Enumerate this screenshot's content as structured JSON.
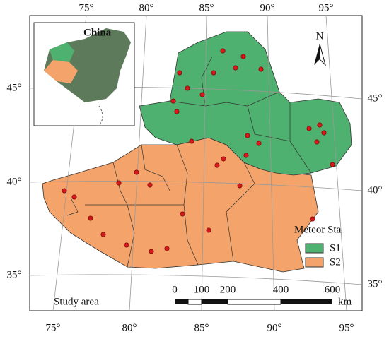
{
  "graticule": {
    "top": [
      "75°",
      "80°",
      "85°",
      "90°",
      "95°"
    ],
    "bottom": [
      "75°",
      "80°",
      "85°",
      "90°",
      "95°"
    ],
    "left": [
      "45°",
      "40°",
      "35°"
    ],
    "right": [
      "45°",
      "40°",
      "35°"
    ]
  },
  "inset": {
    "title": "China"
  },
  "north_arrow": "N",
  "legend": {
    "title": "Meteor Sta",
    "items": [
      "S1",
      "S2"
    ]
  },
  "label": "Study area",
  "scale_bar": {
    "ticks": [
      "0",
      "100",
      "200",
      "400",
      "600"
    ],
    "unit": "km"
  }
}
